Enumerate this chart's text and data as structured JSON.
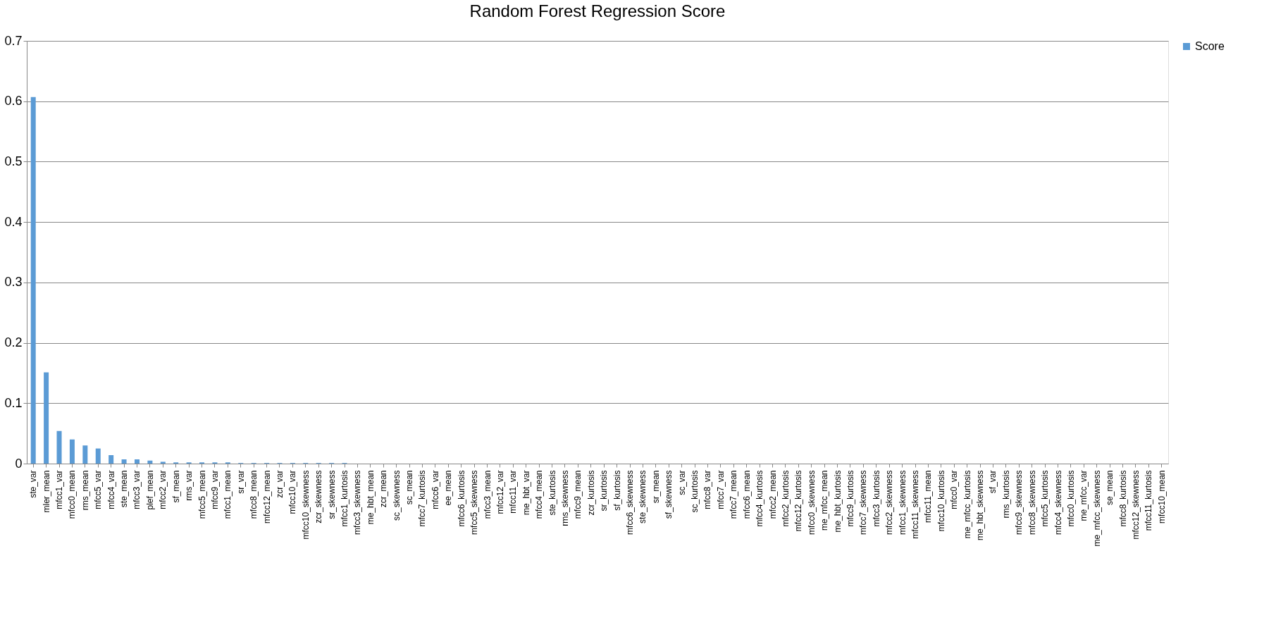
{
  "chart_data": {
    "type": "bar",
    "title": "Random Forest Regression Score",
    "categories": [
      "ste_var",
      "mler_mean",
      "mfcc1_var",
      "mfcc0_mean",
      "rms_mean",
      "mfcc5_var",
      "mfcc4_var",
      "ste_mean",
      "mfcc3_var",
      "plef_mean",
      "mfcc2_var",
      "sf_mean",
      "rms_var",
      "mfcc5_mean",
      "mfcc9_var",
      "mfcc1_mean",
      "sr_var",
      "mfcc8_mean",
      "mfcc12_mean",
      "zcr_var",
      "mfcc10_var",
      "mfcc10_skewness",
      "zcr_skewness",
      "sr_skewness",
      "mfcc1_kurtosis",
      "mfcc3_skewness",
      "me_hbt_mean",
      "zcr_mean",
      "sc_skewness",
      "sc_mean",
      "mfcc7_kurtosis",
      "mfcc6_var",
      "ee_mean",
      "mfcc6_kurtosis",
      "mfcc5_skewness",
      "mfcc3_mean",
      "mfcc12_var",
      "mfcc11_var",
      "me_hbt_var",
      "mfcc4_mean",
      "ste_kurtosis",
      "rms_skewness",
      "mfcc9_mean",
      "zcr_kurtosis",
      "sr_kurtosis",
      "sf_kurtosis",
      "mfcc6_skewness",
      "ste_skewness",
      "sr_mean",
      "sf_skewness",
      "sc_var",
      "sc_kurtosis",
      "mfcc8_var",
      "mfcc7_var",
      "mfcc7_mean",
      "mfcc6_mean",
      "mfcc4_kurtosis",
      "mfcc2_mean",
      "mfcc2_kurtosis",
      "mfcc12_kurtosis",
      "mfcc0_skewness",
      "me_mfcc_mean",
      "me_hbt_kurtosis",
      "mfcc9_kurtosis",
      "mfcc7_skewness",
      "mfcc3_kurtosis",
      "mfcc2_skewness",
      "mfcc1_skewness",
      "mfcc11_skewness",
      "mfcc11_mean",
      "mfcc10_kurtosis",
      "mfcc0_var",
      "me_mfcc_kurtosis",
      "me_hbt_skewness",
      "sf_var",
      "rms_kurtosis",
      "mfcc9_skewness",
      "mfcc8_skewness",
      "mfcc5_kurtosis",
      "mfcc4_skewness",
      "mfcc0_kurtosis",
      "me_mfcc_var",
      "me_mfcc_skewness",
      "se_mean",
      "mfcc8_kurtosis",
      "mfcc12_skewness",
      "mfcc11_kurtosis",
      "mfcc10_mean"
    ],
    "series": [
      {
        "name": "Score",
        "color": "#5b9bd5",
        "values": [
          0.607,
          0.151,
          0.054,
          0.04,
          0.03,
          0.025,
          0.014,
          0.007,
          0.007,
          0.005,
          0.003,
          0.002,
          0.002,
          0.002,
          0.002,
          0.002,
          0.001,
          0.001,
          0.001,
          0.001,
          0.001,
          0.001,
          0.001,
          0.001,
          0.001,
          0,
          0,
          0,
          0,
          0,
          0,
          0,
          0,
          0,
          0,
          0,
          0,
          0,
          0,
          0,
          0,
          0,
          0,
          0,
          0,
          0,
          0,
          0,
          0,
          0,
          0,
          0,
          0,
          0,
          0,
          0,
          0,
          0,
          0,
          0,
          0,
          0,
          0,
          0,
          0,
          0,
          0,
          0,
          0,
          0,
          0,
          0,
          0,
          0,
          0,
          0,
          0,
          0,
          0,
          0,
          0,
          0,
          0,
          0,
          0,
          0,
          0,
          0
        ]
      }
    ],
    "ylim": [
      0,
      0.7
    ],
    "yticks": [
      0,
      0.1,
      0.2,
      0.3,
      0.4,
      0.5,
      0.6,
      0.7
    ],
    "grid": "y",
    "legend": "right"
  }
}
